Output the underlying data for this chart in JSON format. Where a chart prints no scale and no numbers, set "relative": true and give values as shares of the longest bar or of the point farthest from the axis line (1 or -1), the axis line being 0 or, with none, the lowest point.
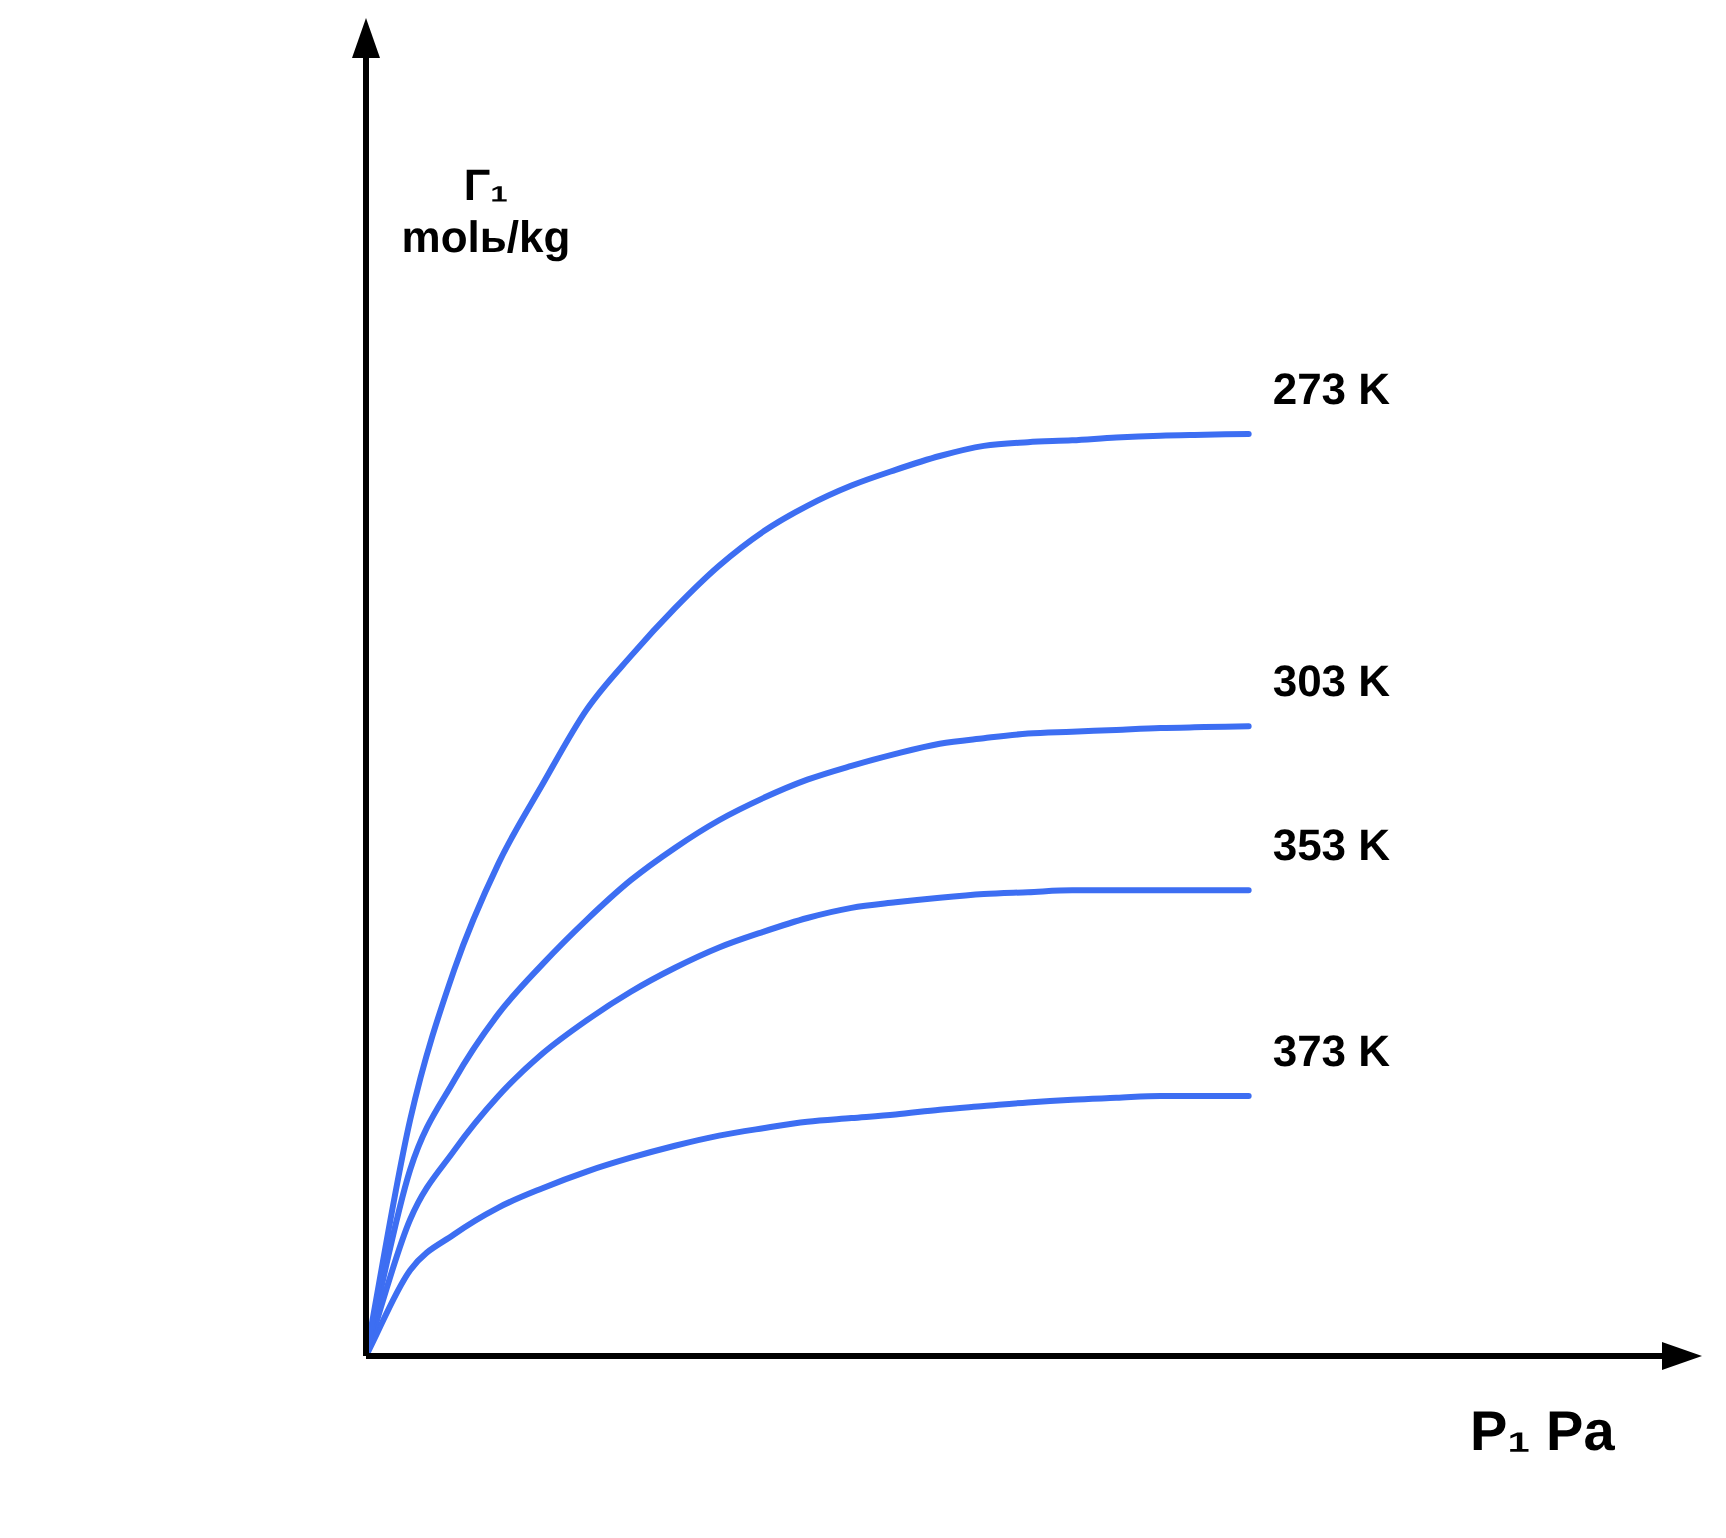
{
  "chart_data": {
    "type": "line",
    "relative": true,
    "xlabel": "P₁ Pa",
    "ylabel": "Γ₁ molь/kg",
    "categories": [
      null,
      null,
      null,
      null,
      null,
      null,
      null,
      null,
      null,
      null,
      null,
      null,
      null,
      null,
      null,
      null,
      null,
      null,
      null,
      null,
      null,
      null,
      null,
      null,
      null,
      null,
      null,
      null,
      null,
      null,
      null
    ],
    "series": [
      {
        "name": "273 K",
        "color": "#3d6ef2",
        "values": [
          0,
          0.256,
          0.419,
          0.534,
          0.62,
          0.701,
          0.759,
          0.811,
          0.857,
          0.894,
          0.922,
          0.944,
          0.961,
          0.976,
          0.987,
          0.991,
          0.993,
          0.996,
          0.998,
          0.999,
          1,
          null,
          null,
          null,
          null,
          null,
          null,
          null,
          null,
          null,
          null
        ]
      },
      {
        "name": "303 K",
        "color": "#3d6ef2",
        "values": [
          0,
          0.202,
          0.299,
          0.371,
          0.425,
          0.473,
          0.516,
          0.551,
          0.581,
          0.605,
          0.625,
          0.64,
          0.653,
          0.664,
          0.67,
          0.675,
          0.677,
          0.679,
          0.681,
          0.682,
          0.683,
          null,
          null,
          null,
          null,
          null,
          null,
          null,
          null,
          null,
          null
        ]
      },
      {
        "name": "353 K",
        "color": "#3d6ef2",
        "values": [
          0,
          0.148,
          0.223,
          0.282,
          0.328,
          0.364,
          0.395,
          0.421,
          0.443,
          0.46,
          0.475,
          0.486,
          0.492,
          0.497,
          0.501,
          0.503,
          0.505,
          0.505,
          0.505,
          0.505,
          0.505,
          null,
          null,
          null,
          null,
          null,
          null,
          null,
          null,
          null,
          null
        ]
      },
      {
        "name": "373 K",
        "color": "#3d6ef2",
        "values": [
          0,
          0.093,
          0.132,
          0.161,
          0.182,
          0.2,
          0.215,
          0.228,
          0.239,
          0.247,
          0.254,
          0.258,
          0.262,
          0.267,
          0.271,
          0.275,
          0.278,
          0.28,
          0.282,
          0.282,
          0.282,
          null,
          null,
          null,
          null,
          null,
          null,
          null,
          null,
          null,
          null
        ]
      }
    ],
    "marker": "none"
  }
}
